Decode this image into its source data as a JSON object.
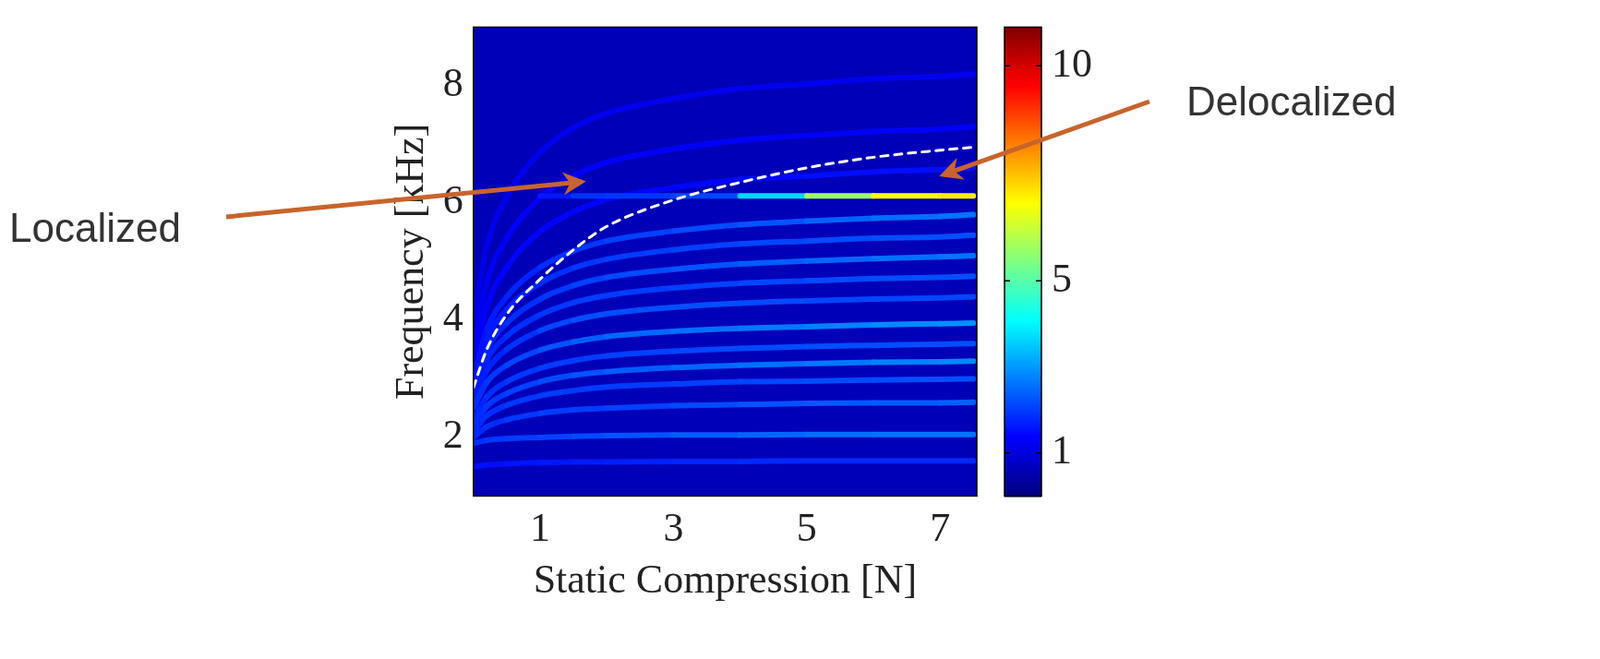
{
  "chart_data": {
    "type": "line",
    "xlabel": "Static Compression [N]",
    "ylabel": "Frequency [kHz]",
    "xlim": [
      0,
      7.55
    ],
    "ylim": [
      1,
      9
    ],
    "xticks": [
      1,
      3,
      5,
      7
    ],
    "yticks": [
      2,
      4,
      6,
      8
    ],
    "grid": false,
    "background_value": 0.6,
    "colorbar": {
      "range": [
        0,
        10.9
      ],
      "ticks": [
        1,
        5,
        10
      ]
    },
    "x": [
      0,
      0.2,
      0.5,
      1,
      1.5,
      2,
      3,
      4,
      5,
      6,
      7,
      7.5
    ],
    "series": [
      {
        "values": [
          1.5,
          1.53,
          1.55,
          1.57,
          1.58,
          1.58,
          1.59,
          1.59,
          1.6,
          1.6,
          1.6,
          1.6
        ],
        "amplitude": [
          1.5,
          1.5,
          1.5,
          1.6,
          1.6,
          1.7,
          1.7,
          1.8,
          1.8,
          1.8,
          1.8,
          1.8
        ]
      },
      {
        "values": [
          1.9,
          1.95,
          1.98,
          2.0,
          2.02,
          2.03,
          2.04,
          2.04,
          2.05,
          2.05,
          2.05,
          2.05
        ],
        "amplitude": [
          1.8,
          1.9,
          2,
          2,
          2.1,
          2.2,
          2.3,
          2.4,
          2.5,
          2.6,
          2.6,
          2.6
        ]
      },
      {
        "values": [
          2.0,
          2.18,
          2.3,
          2.41,
          2.47,
          2.5,
          2.54,
          2.56,
          2.58,
          2.59,
          2.59,
          2.6
        ],
        "amplitude": [
          1.8,
          1.8,
          1.9,
          2,
          2,
          2,
          2.1,
          2.2,
          2.3,
          2.3,
          2.4,
          2.4
        ]
      },
      {
        "values": [
          2.1,
          2.37,
          2.55,
          2.71,
          2.8,
          2.86,
          2.91,
          2.95,
          2.96,
          2.98,
          2.99,
          3.0
        ],
        "amplitude": [
          1.8,
          1.8,
          1.9,
          2,
          2,
          2,
          2,
          2.1,
          2.1,
          2.2,
          2.2,
          2.2
        ]
      },
      {
        "values": [
          2.2,
          2.53,
          2.75,
          2.95,
          3.06,
          3.12,
          3.19,
          3.23,
          3.26,
          3.28,
          3.29,
          3.3
        ],
        "amplitude": [
          1.8,
          1.9,
          2,
          2.1,
          2.2,
          2.3,
          2.4,
          2.5,
          2.6,
          2.7,
          2.8,
          2.8
        ]
      },
      {
        "values": [
          2.3,
          2.69,
          2.95,
          3.18,
          3.31,
          3.39,
          3.47,
          3.52,
          3.55,
          3.57,
          3.59,
          3.6
        ],
        "amplitude": [
          1.7,
          1.8,
          1.9,
          2,
          2,
          2,
          2.1,
          2.1,
          2.2,
          2.2,
          2.2,
          2.2
        ]
      },
      {
        "values": [
          2.5,
          2.94,
          3.23,
          3.49,
          3.63,
          3.72,
          3.81,
          3.86,
          3.89,
          3.92,
          3.94,
          3.95
        ],
        "amplitude": [
          1.8,
          1.9,
          2,
          2.2,
          2.3,
          2.4,
          2.5,
          2.6,
          2.7,
          2.8,
          2.9,
          2.9
        ]
      },
      {
        "values": [
          2.6,
          3.14,
          3.5,
          3.82,
          4.0,
          4.11,
          4.22,
          4.29,
          4.33,
          4.36,
          4.38,
          4.4
        ],
        "amplitude": [
          1.6,
          1.7,
          1.8,
          2,
          2.2,
          2.2,
          2.2,
          2.2,
          2.1,
          2.1,
          2.1,
          2.1
        ]
      },
      {
        "values": [
          2.7,
          3.32,
          3.73,
          4.09,
          4.3,
          4.42,
          4.55,
          4.63,
          4.67,
          4.71,
          4.73,
          4.75
        ],
        "amplitude": [
          1.6,
          1.7,
          1.8,
          1.9,
          2,
          2,
          2,
          2.1,
          2.1,
          2.2,
          2.2,
          2.2
        ]
      },
      {
        "values": [
          2.8,
          3.49,
          3.95,
          4.36,
          4.59,
          4.73,
          4.87,
          4.96,
          5.01,
          5.05,
          5.08,
          5.1
        ],
        "amplitude": [
          1.6,
          1.7,
          1.8,
          1.9,
          2,
          2.1,
          2.2,
          2.3,
          2.4,
          2.5,
          2.6,
          2.6
        ]
      },
      {
        "values": [
          2.9,
          3.67,
          4.18,
          4.63,
          4.89,
          5.04,
          5.2,
          5.3,
          5.35,
          5.4,
          5.42,
          5.45
        ],
        "amplitude": [
          1.5,
          1.6,
          1.7,
          1.8,
          1.9,
          2,
          2,
          2.1,
          2.1,
          2.2,
          2.2,
          2.2
        ]
      },
      {
        "values": [
          3.0,
          3.84,
          4.4,
          4.9,
          5.18,
          5.35,
          5.52,
          5.63,
          5.69,
          5.74,
          5.77,
          5.8
        ],
        "amplitude": [
          1.5,
          1.6,
          1.7,
          1.8,
          1.9,
          2,
          2.1,
          2.2,
          2.3,
          2.5,
          2.6,
          2.6
        ]
      },
      {
        "values": [
          null,
          null,
          null,
          6.12,
          6.12,
          6.12,
          6.12,
          6.12,
          6.12,
          6.12,
          6.12,
          6.12
        ],
        "amplitude": [
          null,
          null,
          null,
          1.4,
          1.8,
          2,
          1.9,
          2.3,
          5,
          6.5,
          7,
          7
        ]
      },
      {
        "values": [
          3.2,
          4.22,
          4.9,
          5.51,
          5.85,
          6.06,
          6.26,
          6.4,
          6.46,
          6.53,
          6.57,
          6.6
        ],
        "amplitude": [
          1.3,
          1.3,
          1.4,
          1.4,
          1.4,
          1.4,
          1.4,
          1.4,
          1.5,
          1.5,
          1.5,
          1.5
        ]
      },
      {
        "values": [
          3.5,
          4.64,
          5.4,
          6.08,
          6.46,
          6.69,
          6.92,
          7.07,
          7.15,
          7.22,
          7.26,
          7.3
        ],
        "amplitude": [
          1.2,
          1.2,
          1.3,
          1.3,
          1.3,
          1.3,
          1.3,
          1.3,
          1.3,
          1.3,
          1.3,
          1.3
        ]
      },
      {
        "values": [
          4.0,
          5.26,
          6.1,
          6.86,
          7.28,
          7.53,
          7.78,
          7.95,
          8.03,
          8.12,
          8.16,
          8.2
        ],
        "amplitude": [
          1.1,
          1.1,
          1.2,
          1.2,
          1.2,
          1.2,
          1.2,
          1.2,
          1.2,
          1.2,
          1.2,
          1.2
        ]
      },
      {
        "color": "#ffffff",
        "line_style": "dashed",
        "values": [
          2.85,
          3.5,
          4.1,
          4.7,
          5.2,
          5.6,
          6.05,
          6.35,
          6.6,
          6.78,
          6.9,
          6.95
        ]
      }
    ],
    "annotations": [
      {
        "text": "Localized",
        "x": 1.62,
        "y": 6.36
      },
      {
        "text": "Delocalized",
        "x": 7.05,
        "y": 6.48
      }
    ]
  }
}
